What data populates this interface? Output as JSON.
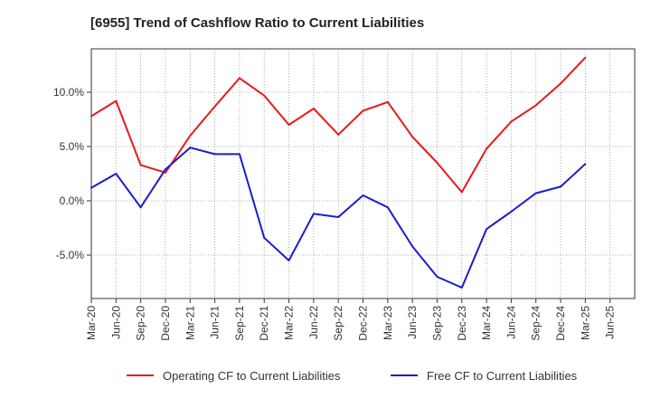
{
  "chart_data": {
    "type": "line",
    "title": "[6955]  Trend of Cashflow Ratio to Current Liabilities",
    "xlabel": "",
    "ylabel": "",
    "categories": [
      "Mar-20",
      "Jun-20",
      "Sep-20",
      "Dec-20",
      "Mar-21",
      "Jun-21",
      "Sep-21",
      "Dec-21",
      "Mar-22",
      "Jun-22",
      "Sep-22",
      "Dec-22",
      "Mar-23",
      "Jun-23",
      "Sep-23",
      "Dec-23",
      "Mar-24",
      "Jun-24",
      "Sep-24",
      "Dec-24",
      "Mar-25",
      "Jun-25"
    ],
    "ylim": [
      -9.0,
      14.0
    ],
    "yticks": [
      -5.0,
      0.0,
      5.0,
      10.0
    ],
    "ytick_labels": [
      "-5.0%",
      "0.0%",
      "5.0%",
      "10.0%"
    ],
    "grid": true,
    "legend_position": "bottom",
    "series": [
      {
        "name": "Operating CF to Current Liabilities",
        "color": "#e8191c",
        "values": [
          7.8,
          9.2,
          3.3,
          2.6,
          6.0,
          8.7,
          11.3,
          9.7,
          7.0,
          8.5,
          6.1,
          8.3,
          9.1,
          5.9,
          3.5,
          0.8,
          4.8,
          7.3,
          8.8,
          10.8,
          13.2,
          null
        ]
      },
      {
        "name": "Free CF to Current Liabilities",
        "color": "#1c1ccc",
        "values": [
          1.2,
          2.5,
          -0.6,
          2.9,
          4.9,
          4.3,
          4.3,
          -3.4,
          -5.5,
          -1.2,
          -1.5,
          0.5,
          -0.6,
          -4.2,
          -7.0,
          -8.0,
          -2.6,
          -1.0,
          0.7,
          1.3,
          3.4,
          null
        ]
      }
    ]
  }
}
